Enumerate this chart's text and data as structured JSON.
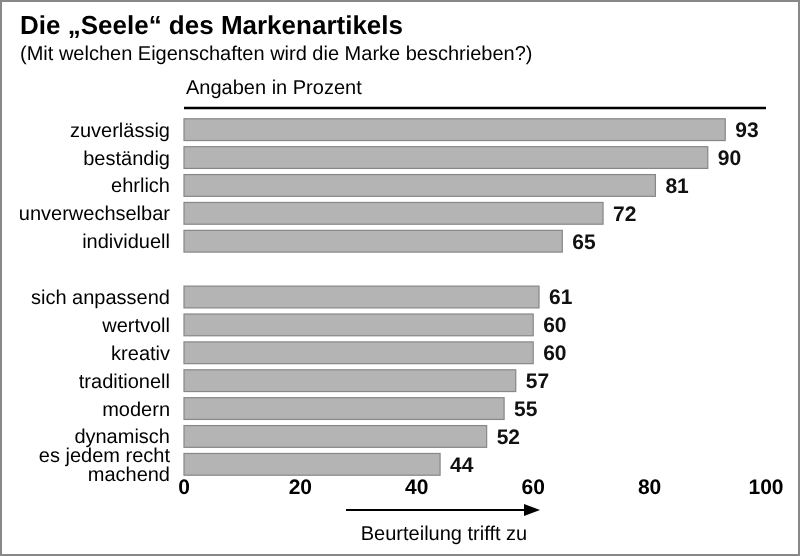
{
  "chart_data": {
    "type": "bar",
    "orientation": "horizontal",
    "title": "Die „Seele“ des Markenartikels",
    "subtitle": "(Mit welchen Eigenschaften wird die Marke beschrieben?)",
    "annotations": [
      "Angaben in Prozent"
    ],
    "xlabel": "Beurteilung trifft zu",
    "categories": [
      "zuverlässig",
      "beständig",
      "ehrlich",
      "unverwechselbar",
      "individuell",
      null,
      "sich anpassend",
      "wertvoll",
      "kreativ",
      "traditionell",
      "modern",
      "dynamisch",
      "es jedem recht machend"
    ],
    "values": [
      93,
      90,
      81,
      72,
      65,
      null,
      61,
      60,
      60,
      57,
      55,
      52,
      44
    ],
    "color": "#b4b4b4",
    "xlim": [
      0,
      100
    ],
    "xticks": [
      0,
      20,
      40,
      60,
      80,
      100
    ],
    "data_labels": true,
    "grid": false
  }
}
